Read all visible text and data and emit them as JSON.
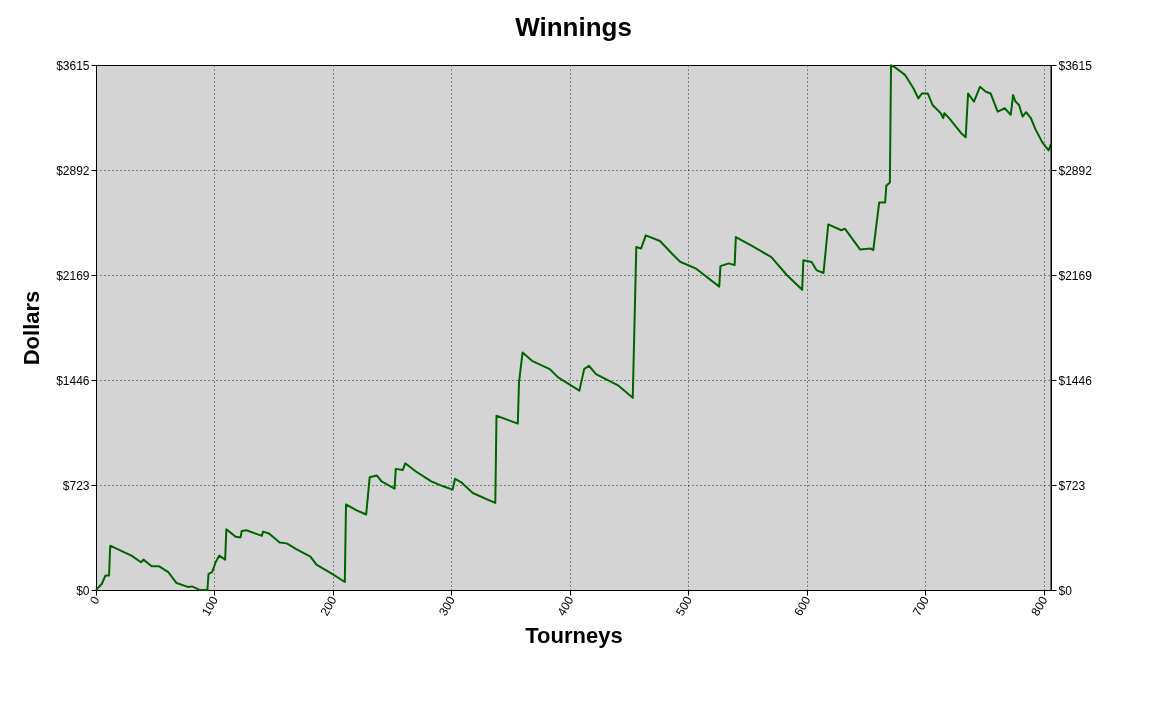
{
  "chart_data": {
    "type": "line",
    "title": "Winnings",
    "xlabel": "Tourneys",
    "ylabel": "Dollars",
    "x": [
      0,
      5,
      8,
      11,
      12,
      24,
      30,
      38,
      40,
      47,
      53,
      61,
      68,
      78,
      81,
      87,
      94,
      95,
      98,
      101,
      104,
      109,
      110,
      118,
      122,
      123,
      127,
      140,
      141,
      146,
      155,
      161,
      169,
      181,
      186,
      200,
      210,
      211,
      220,
      228,
      231,
      237,
      241,
      252,
      253,
      259,
      261,
      270,
      283,
      293,
      301,
      303,
      308,
      318,
      331,
      337,
      338,
      352,
      356,
      357,
      360,
      368,
      383,
      390,
      408,
      412,
      416,
      422,
      441,
      453,
      456,
      460,
      464,
      476,
      486,
      493,
      506,
      526,
      527,
      534,
      539,
      540,
      554,
      570,
      583,
      596,
      597,
      604,
      608,
      614,
      618,
      629,
      632,
      645,
      654,
      656,
      661,
      666,
      667,
      670,
      671,
      674,
      683,
      690,
      694,
      697,
      702,
      706,
      713,
      715,
      716,
      720,
      730,
      734,
      736,
      741,
      746,
      751,
      755,
      761,
      767,
      772,
      774,
      776,
      779,
      782,
      785,
      789,
      793,
      799,
      804,
      806
    ],
    "series": [
      {
        "color": "#006400",
        "values": [
          0,
          43,
          100,
          100,
          305,
          259,
          237,
          191,
          209,
          164,
          164,
          123,
          48,
          20,
          25,
          2,
          0,
          111,
          123,
          191,
          237,
          209,
          418,
          366,
          362,
          407,
          411,
          373,
          402,
          389,
          327,
          321,
          282,
          230,
          175,
          107,
          55,
          589,
          548,
          520,
          776,
          789,
          748,
          698,
          834,
          827,
          873,
          816,
          748,
          714,
          691,
          766,
          743,
          668,
          621,
          600,
          1200,
          1158,
          1146,
          1430,
          1635,
          1578,
          1521,
          1464,
          1373,
          1521,
          1544,
          1487,
          1407,
          1323,
          2362,
          2351,
          2442,
          2403,
          2317,
          2260,
          2215,
          2089,
          2230,
          2249,
          2237,
          2430,
          2367,
          2292,
          2169,
          2067,
          2271,
          2258,
          2203,
          2183,
          2517,
          2477,
          2488,
          2344,
          2351,
          2340,
          2669,
          2669,
          2783,
          2806,
          3613,
          3601,
          3545,
          3453,
          3385,
          3419,
          3419,
          3340,
          3283,
          3249,
          3283,
          3249,
          3147,
          3117,
          3419,
          3363,
          3465,
          3431,
          3419,
          3294,
          3317,
          3272,
          3408,
          3363,
          3340,
          3260,
          3290,
          3249,
          3170,
          3078,
          3027,
          3071
        ]
      }
    ],
    "xlim": [
      0,
      806
    ],
    "xticks": [
      0,
      100,
      200,
      300,
      400,
      500,
      600,
      700,
      800
    ],
    "ylim": [
      0,
      3615
    ],
    "yticks": [
      {
        "value": 0,
        "label": "$0"
      },
      {
        "value": 723,
        "label": "$723"
      },
      {
        "value": 1446,
        "label": "$1446"
      },
      {
        "value": 2169,
        "label": "$2169"
      },
      {
        "value": 2892,
        "label": "$2892"
      },
      {
        "value": 3615,
        "label": "$3615"
      }
    ],
    "y2lim": [
      0,
      3615
    ],
    "y2ticks": [
      {
        "value": 0,
        "label": "$0"
      },
      {
        "value": 723,
        "label": "$723"
      },
      {
        "value": 1446,
        "label": "$1446"
      },
      {
        "value": 2169,
        "label": "$2169"
      },
      {
        "value": 2892,
        "label": "$2892"
      },
      {
        "value": 3615,
        "label": "$3615"
      }
    ],
    "grid": true,
    "line_style": "solid",
    "marker": "none"
  }
}
